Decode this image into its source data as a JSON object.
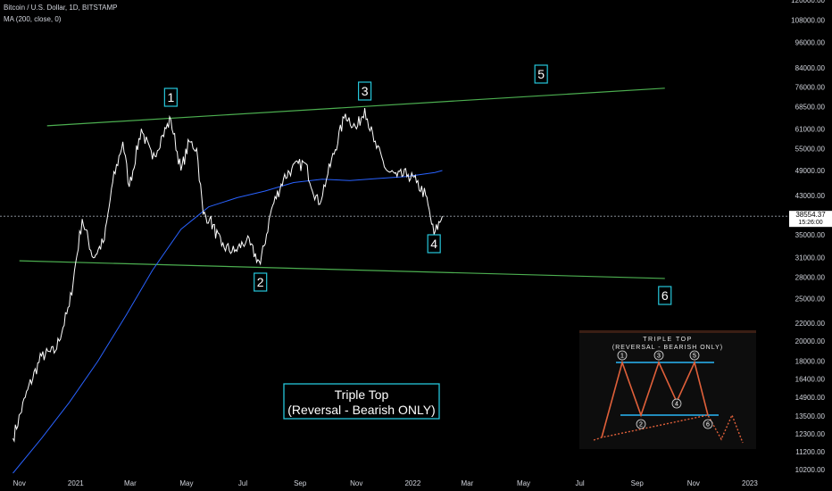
{
  "header": {
    "symbol_line": "Bitcoin / U.S. Dollar, 1D, BITSTAMP",
    "indicator_line": "MA (200, close, 0)"
  },
  "colors": {
    "background": "#000000",
    "price_line": "#ffffff",
    "ma_line": "#2962ff",
    "trendline": "#4caf50",
    "box_border": "#26c6da",
    "inset_orange": "#e0603a",
    "inset_blue": "#29b6f6"
  },
  "chart_data": {
    "type": "line",
    "y_scale": "log",
    "ylim": [
      10000,
      120000
    ],
    "y_ticks": [
      "120000.00",
      "108000.00",
      "96000.00",
      "84000.00",
      "76000.00",
      "68500.00",
      "61000.00",
      "55000.00",
      "49000.00",
      "43000.00",
      "35000.00",
      "31000.00",
      "28000.00",
      "25000.00",
      "22000.00",
      "20000.00",
      "18000.00",
      "16400.00",
      "14900.00",
      "13500.00",
      "12300.00",
      "11200.00",
      "10200.00"
    ],
    "x_ticks": [
      "Nov",
      "2021",
      "Mar",
      "May",
      "Jul",
      "Sep",
      "Nov",
      "2022",
      "Mar",
      "May",
      "Jul",
      "Sep",
      "Nov",
      "2023"
    ],
    "current_price": "38554.37",
    "countdown": "15:26:00",
    "series": [
      {
        "name": "Bitcoin / U.S. Dollar",
        "x": [
          "2020-10-25",
          "2020-11-10",
          "2020-11-25",
          "2020-12-10",
          "2020-12-25",
          "2021-01-08",
          "2021-01-20",
          "2021-02-01",
          "2021-02-10",
          "2021-02-21",
          "2021-02-28",
          "2021-03-13",
          "2021-03-25",
          "2021-04-05",
          "2021-04-14",
          "2021-04-25",
          "2021-05-04",
          "2021-05-12",
          "2021-05-19",
          "2021-05-26",
          "2021-06-08",
          "2021-06-22",
          "2021-07-05",
          "2021-07-20",
          "2021-08-01",
          "2021-08-14",
          "2021-08-23",
          "2021-09-06",
          "2021-09-21",
          "2021-10-01",
          "2021-10-20",
          "2021-11-01",
          "2021-11-10",
          "2021-11-20",
          "2021-12-04",
          "2021-12-15",
          "2021-12-27",
          "2022-01-05",
          "2022-01-15",
          "2022-01-24",
          "2022-02-02"
        ],
        "values": [
          12000,
          15500,
          18500,
          19000,
          24000,
          38000,
          31000,
          34000,
          46000,
          57000,
          45000,
          61000,
          52000,
          59000,
          64000,
          49000,
          57000,
          55000,
          39000,
          38000,
          33000,
          32000,
          34000,
          30000,
          40000,
          47000,
          49500,
          51000,
          41000,
          48000,
          66000,
          61000,
          68000,
          57000,
          49000,
          47500,
          48000,
          46000,
          43000,
          35000,
          38554
        ]
      },
      {
        "name": "MA (200, close, 0)",
        "x": [
          "2020-10-25",
          "2020-11-25",
          "2020-12-25",
          "2021-01-25",
          "2021-02-25",
          "2021-03-25",
          "2021-04-25",
          "2021-05-25",
          "2021-06-25",
          "2021-07-25",
          "2021-08-25",
          "2021-09-25",
          "2021-10-25",
          "2021-11-25",
          "2021-12-25",
          "2022-01-25",
          "2022-02-02"
        ],
        "values": [
          10000,
          12000,
          14500,
          18000,
          23000,
          29000,
          36000,
          40500,
          42500,
          44000,
          46000,
          46800,
          46500,
          47000,
          47500,
          48500,
          49000
        ]
      }
    ],
    "trendlines": [
      {
        "name": "resistance",
        "from": {
          "x": "2020-12-01",
          "y": 62000
        },
        "to": {
          "x": "2022-10-01",
          "y": 75500
        }
      },
      {
        "name": "support",
        "from": {
          "x": "2020-11-01",
          "y": 30500
        },
        "to": {
          "x": "2022-10-01",
          "y": 27800
        }
      }
    ],
    "pattern_points": [
      {
        "label": "1",
        "x": "2021-04-14"
      },
      {
        "label": "2",
        "x": "2021-07-20"
      },
      {
        "label": "3",
        "x": "2021-11-10"
      },
      {
        "label": "4",
        "x": "2022-01-24"
      },
      {
        "label": "5",
        "x": "2022-05-20"
      },
      {
        "label": "6",
        "x": "2022-10-01"
      }
    ],
    "annotation": {
      "line1": "Triple Top",
      "line2": "(Reversal - Bearish ONLY)"
    }
  },
  "inset": {
    "title": "TRIPLE TOP",
    "subtitle": "(REVERSAL - BEARISH ONLY)",
    "points": [
      "1",
      "2",
      "3",
      "4",
      "5",
      "6"
    ]
  }
}
